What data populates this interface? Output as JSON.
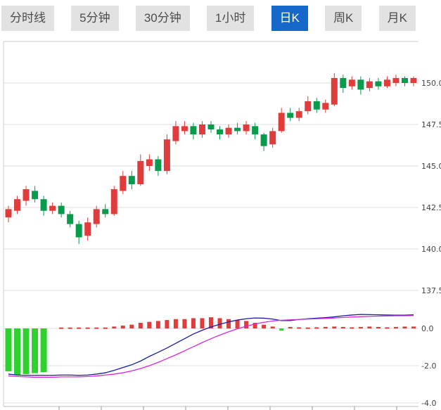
{
  "toolbar": {
    "buttons": [
      {
        "label": "分时线",
        "active": false
      },
      {
        "label": "5分钟",
        "active": false
      },
      {
        "label": "30分钟",
        "active": false
      },
      {
        "label": "1小时",
        "active": false
      },
      {
        "label": "日K",
        "active": true
      },
      {
        "label": "周K",
        "active": false
      },
      {
        "label": "月K",
        "active": false
      }
    ],
    "active_bg": "#1568c9",
    "active_fg": "#ffffff",
    "inactive_bg": "#e2e2e2",
    "inactive_fg": "#4d4d4d"
  },
  "chart_data": [
    {
      "type": "candlestick",
      "title": "",
      "y_axis": {
        "position": "right",
        "ticks": [
          150.0,
          147.5,
          145.0,
          142.5,
          140.0,
          137.5
        ],
        "range": [
          137.5,
          152.5
        ]
      },
      "colors": {
        "up": "#e13c3c",
        "down": "#089b4c",
        "grid": "#dddddd",
        "axis_text": "#444444",
        "border": "#cccccc"
      },
      "grid": true,
      "candle_format": [
        "open",
        "high",
        "low",
        "close"
      ],
      "candles": [
        [
          141.9,
          142.6,
          141.6,
          142.4
        ],
        [
          142.3,
          143.2,
          142.1,
          143.0
        ],
        [
          142.9,
          143.8,
          142.6,
          143.6
        ],
        [
          143.5,
          143.8,
          142.8,
          143.0
        ],
        [
          143.0,
          143.2,
          142.0,
          142.3
        ],
        [
          142.3,
          142.8,
          142.1,
          142.6
        ],
        [
          142.6,
          142.8,
          141.9,
          142.1
        ],
        [
          142.1,
          142.3,
          141.3,
          141.5
        ],
        [
          141.5,
          141.7,
          140.3,
          140.7
        ],
        [
          140.8,
          141.9,
          140.5,
          141.6
        ],
        [
          141.5,
          142.6,
          141.3,
          142.4
        ],
        [
          142.4,
          142.7,
          141.9,
          142.1
        ],
        [
          142.1,
          143.8,
          142.0,
          143.6
        ],
        [
          143.5,
          144.7,
          143.3,
          144.4
        ],
        [
          144.4,
          144.7,
          143.6,
          143.9
        ],
        [
          143.9,
          145.7,
          143.8,
          145.3
        ],
        [
          145.0,
          145.7,
          144.7,
          145.4
        ],
        [
          145.4,
          145.6,
          144.4,
          144.7
        ],
        [
          144.7,
          146.9,
          144.5,
          146.6
        ],
        [
          146.5,
          147.7,
          146.3,
          147.4
        ],
        [
          147.1,
          147.7,
          146.9,
          147.4
        ],
        [
          147.4,
          147.6,
          146.6,
          146.9
        ],
        [
          146.9,
          147.7,
          146.7,
          147.5
        ],
        [
          147.5,
          147.7,
          147.0,
          147.2
        ],
        [
          147.2,
          147.4,
          146.6,
          146.9
        ],
        [
          146.9,
          147.5,
          146.7,
          147.3
        ],
        [
          147.3,
          147.6,
          146.9,
          147.1
        ],
        [
          147.1,
          147.7,
          146.9,
          147.5
        ],
        [
          147.4,
          147.6,
          146.6,
          146.9
        ],
        [
          146.9,
          147.0,
          145.9,
          146.2
        ],
        [
          146.3,
          147.3,
          146.1,
          147.1
        ],
        [
          147.1,
          148.5,
          147.0,
          148.2
        ],
        [
          148.2,
          148.5,
          147.7,
          147.9
        ],
        [
          147.9,
          148.5,
          147.7,
          148.3
        ],
        [
          148.3,
          149.2,
          148.1,
          148.9
        ],
        [
          148.9,
          149.1,
          148.2,
          148.4
        ],
        [
          148.4,
          149.0,
          148.2,
          148.8
        ],
        [
          148.7,
          150.6,
          148.6,
          150.3
        ],
        [
          150.3,
          150.5,
          149.4,
          149.7
        ],
        [
          149.8,
          150.4,
          149.6,
          150.2
        ],
        [
          150.2,
          150.4,
          149.3,
          149.6
        ],
        [
          149.7,
          150.3,
          149.5,
          150.1
        ],
        [
          150.1,
          150.3,
          149.6,
          149.8
        ],
        [
          149.8,
          150.4,
          149.7,
          150.2
        ],
        [
          150.0,
          150.5,
          149.8,
          150.3
        ],
        [
          150.3,
          150.4,
          149.8,
          150.0
        ],
        [
          150.0,
          150.4,
          149.8,
          150.3
        ]
      ]
    },
    {
      "type": "macd",
      "y_axis": {
        "position": "right",
        "ticks": [
          0.0,
          -2.0,
          -4.0
        ],
        "range": [
          -4.4,
          0.9
        ]
      },
      "series": [
        {
          "name": "DIF",
          "color": "#1b1ba8",
          "values": [
            -2.45,
            -2.5,
            -2.52,
            -2.52,
            -2.52,
            -2.52,
            -2.5,
            -2.5,
            -2.52,
            -2.5,
            -2.45,
            -2.38,
            -2.25,
            -2.1,
            -1.95,
            -1.75,
            -1.5,
            -1.28,
            -1.05,
            -0.8,
            -0.55,
            -0.3,
            -0.1,
            0.08,
            0.22,
            0.35,
            0.45,
            0.52,
            0.56,
            0.55,
            0.5,
            0.42,
            0.42,
            0.48,
            0.52,
            0.55,
            0.58,
            0.62,
            0.68,
            0.72,
            0.75,
            0.74,
            0.73,
            0.72,
            0.71,
            0.71,
            0.73
          ]
        },
        {
          "name": "DEA",
          "color": "#d928d9",
          "values": [
            -2.55,
            -2.58,
            -2.6,
            -2.62,
            -2.62,
            -2.62,
            -2.6,
            -2.6,
            -2.6,
            -2.58,
            -2.55,
            -2.5,
            -2.45,
            -2.38,
            -2.28,
            -2.15,
            -2.0,
            -1.82,
            -1.62,
            -1.42,
            -1.2,
            -0.98,
            -0.76,
            -0.55,
            -0.36,
            -0.18,
            -0.02,
            0.12,
            0.24,
            0.33,
            0.4,
            0.44,
            0.46,
            0.48,
            0.5,
            0.52,
            0.54,
            0.56,
            0.59,
            0.61,
            0.63,
            0.65,
            0.66,
            0.67,
            0.68,
            0.68,
            0.69
          ]
        }
      ],
      "histogram": {
        "up_color": "#e13c3c",
        "down_color": "#2fd12f",
        "values": [
          -2.3,
          -2.5,
          -2.45,
          -2.4,
          -2.35,
          0,
          0.05,
          0.05,
          0.05,
          0.05,
          0.05,
          0.05,
          0.1,
          0.15,
          0.2,
          0.3,
          0.35,
          0.4,
          0.45,
          0.5,
          0.5,
          0.55,
          0.55,
          0.6,
          0.55,
          0.5,
          0.45,
          0.4,
          0.3,
          0.2,
          0.1,
          -0.12,
          0.08,
          0.06,
          0.05,
          0.06,
          0.08,
          0.1,
          0.08,
          0.06,
          0.08,
          0.1,
          0.08,
          0.06,
          0.08,
          0.1,
          0.1
        ]
      }
    }
  ]
}
